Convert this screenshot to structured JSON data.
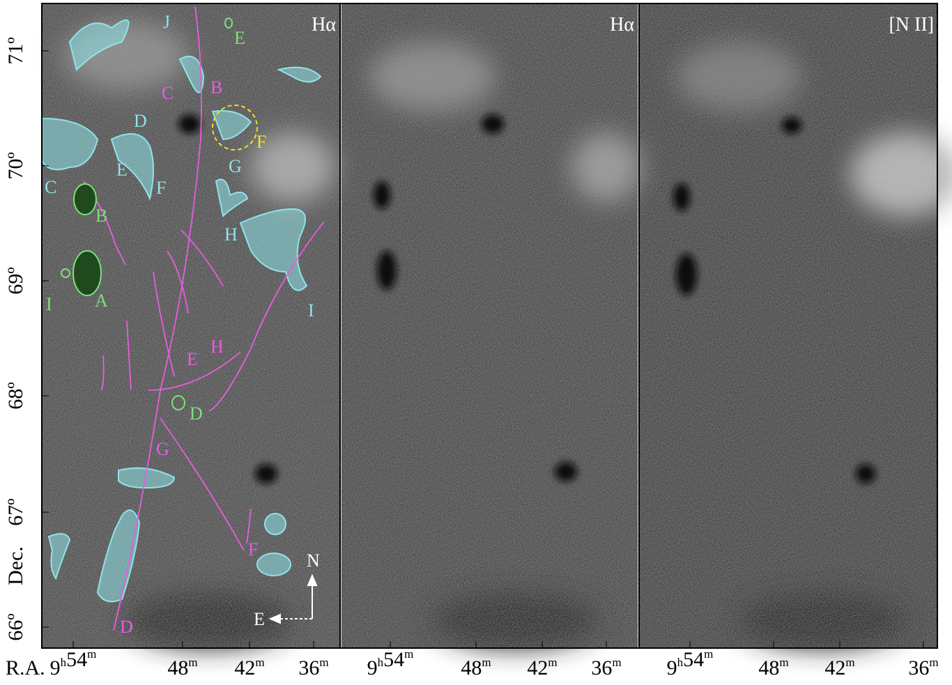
{
  "panels": [
    {
      "label": "Hα"
    },
    {
      "label": "Hα"
    },
    {
      "label": "[N II]"
    }
  ],
  "y_axis": {
    "label": "Dec.",
    "ticks": [
      "71º",
      "70º",
      "69º",
      "68º",
      "67º",
      "66º"
    ]
  },
  "x_axis": {
    "label": "R.A.",
    "ticks": [
      [
        [
          "9",
          "h"
        ],
        [
          "54",
          "m"
        ]
      ],
      [
        [
          "48",
          "m"
        ]
      ],
      [
        [
          "42",
          "m"
        ]
      ],
      [
        [
          "36",
          "m"
        ]
      ]
    ]
  },
  "annotations": [
    {
      "text": "J",
      "color": "#8fe3e8"
    },
    {
      "text": "D",
      "color": "#8fe3e8"
    },
    {
      "text": "E",
      "color": "#8fe3e8"
    },
    {
      "text": "F",
      "color": "#8fe3e8"
    },
    {
      "text": "C",
      "color": "#8fe3e8"
    },
    {
      "text": "G",
      "color": "#8fe3e8"
    },
    {
      "text": "H",
      "color": "#8fe3e8"
    },
    {
      "text": "I",
      "color": "#8fe3e8"
    },
    {
      "text": "C",
      "color": "#e85ce0"
    },
    {
      "text": "B",
      "color": "#e85ce0"
    },
    {
      "text": "E",
      "color": "#e85ce0"
    },
    {
      "text": "H",
      "color": "#e85ce0"
    },
    {
      "text": "G",
      "color": "#e85ce0"
    },
    {
      "text": "F",
      "color": "#e85ce0"
    },
    {
      "text": "D",
      "color": "#e85ce0"
    },
    {
      "text": "E",
      "color": "#7ee07a"
    },
    {
      "text": "B",
      "color": "#7ee07a"
    },
    {
      "text": "A",
      "color": "#7ee07a"
    },
    {
      "text": "I",
      "color": "#7ee07a"
    },
    {
      "text": "D",
      "color": "#7ee07a"
    },
    {
      "text": "F",
      "color": "#f0e020"
    },
    {
      "text": "N",
      "color": "#ffffff"
    },
    {
      "text": "E",
      "color": "#ffffff"
    }
  ]
}
